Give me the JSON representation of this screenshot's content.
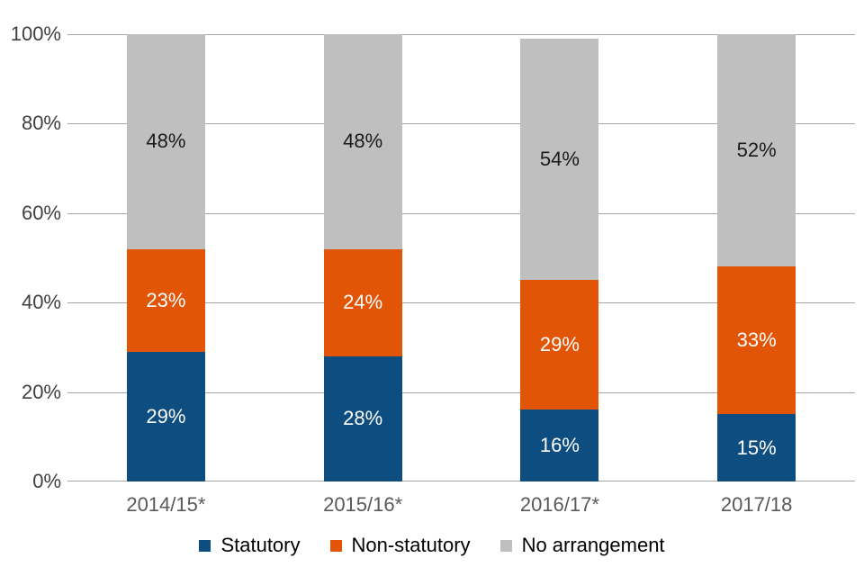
{
  "chart_data": {
    "type": "bar",
    "stacked": true,
    "title": "",
    "xlabel": "",
    "ylabel": "",
    "categories": [
      "2014/15*",
      "2015/16*",
      "2016/17*",
      "2017/18"
    ],
    "series": [
      {
        "name": "Statutory",
        "color": "#0E4D80",
        "label_color": "#FFFFFF",
        "values": [
          29,
          28,
          16,
          15
        ]
      },
      {
        "name": "Non-statutory",
        "color": "#E25506",
        "label_color": "#FFFFFF",
        "values": [
          23,
          24,
          29,
          33
        ]
      },
      {
        "name": "No arrangement",
        "color": "#BFBFBF",
        "label_color": "#1A1A1A",
        "values": [
          48,
          48,
          54,
          52
        ]
      }
    ],
    "value_suffix": "%",
    "ylim": [
      0,
      100
    ],
    "y_axis": {
      "min": 0,
      "max": 100,
      "step": 20,
      "tick_suffix": "%"
    },
    "grid": true,
    "legend_position": "bottom"
  },
  "colors": {
    "background": "#FFFFFF",
    "gridline": "#A6A6A6",
    "y_tick_text": "#404040",
    "x_tick_text": "#595959",
    "legend_text": "#000000"
  }
}
